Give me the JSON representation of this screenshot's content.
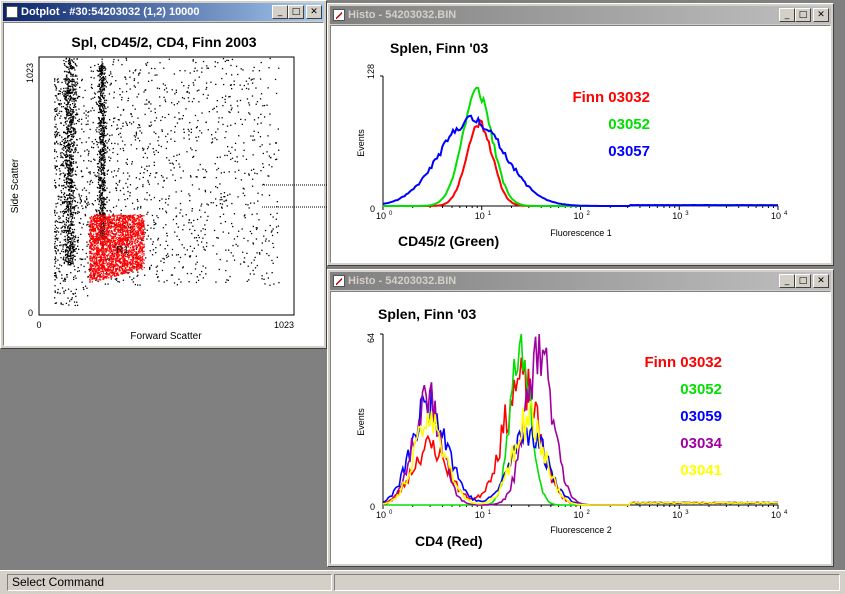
{
  "dotplot_window": {
    "title": "Dotplot - #30:54203032 (1,2) 10000",
    "plot_title": "Spl, CD45/2, CD4, Finn 2003",
    "ylabel": "Side Scatter",
    "xlabel": "Forward Scatter",
    "x_ticks": [
      "0",
      "1023"
    ],
    "y_ticks": [
      "0",
      "1023"
    ],
    "region_label": "R1",
    "colors": {
      "events": "#000000",
      "gated": "#ff0000"
    }
  },
  "histo_top": {
    "title": "Histo - 54203032.BIN",
    "plot_title": "Splen, Finn '03",
    "ylabel": "Events",
    "xlabel": "Fluorescence 1",
    "ymax_label": "128",
    "ymin_label": "0",
    "channel_label": "CD45/2 (Green)",
    "x_tick_labels": [
      {
        "base": "10",
        "exp": "0"
      },
      {
        "base": "10",
        "exp": "1"
      },
      {
        "base": "10",
        "exp": "2"
      },
      {
        "base": "10",
        "exp": "3"
      },
      {
        "base": "10",
        "exp": "4"
      }
    ],
    "legend": [
      {
        "text": "Finn 03032",
        "color": "#ff0000"
      },
      {
        "text": "03052",
        "color": "#00e000"
      },
      {
        "text": "03057",
        "color": "#0000ff"
      }
    ]
  },
  "histo_bottom": {
    "title": "Histo - 54203032.BIN",
    "plot_title": "Splen, Finn '03",
    "ylabel": "Events",
    "xlabel": "Fluorescence 2",
    "ymax_label": "64",
    "ymin_label": "0",
    "channel_label": "CD4 (Red)",
    "x_tick_labels": [
      {
        "base": "10",
        "exp": "0"
      },
      {
        "base": "10",
        "exp": "1"
      },
      {
        "base": "10",
        "exp": "2"
      },
      {
        "base": "10",
        "exp": "3"
      },
      {
        "base": "10",
        "exp": "4"
      }
    ],
    "legend": [
      {
        "text": "Finn 03032",
        "color": "#ff0000"
      },
      {
        "text": "03052",
        "color": "#00e000"
      },
      {
        "text": "03059",
        "color": "#0000ff"
      },
      {
        "text": "03034",
        "color": "#a000a0"
      },
      {
        "text": "03041",
        "color": "#ffff00"
      }
    ]
  },
  "window_buttons": {
    "minimize": "_",
    "maximize": "□",
    "close": "✕"
  },
  "status": {
    "text": "Select Command"
  },
  "chart_data": [
    {
      "type": "scatter",
      "title": "Spl, CD45/2, CD4, Finn 2003",
      "xlabel": "Forward Scatter",
      "ylabel": "Side Scatter",
      "xlim": [
        0,
        1023
      ],
      "ylim": [
        0,
        1023
      ],
      "regions": [
        {
          "name": "R1",
          "color": "#ff0000"
        }
      ],
      "series": [
        {
          "color": "#000000",
          "x_range": [
            30,
            1000
          ],
          "y_range": [
            60,
            1023
          ]
        },
        {
          "name": "R1",
          "color": "#ff0000",
          "x_range": [
            200,
            420
          ],
          "y_range": [
            130,
            400
          ]
        }
      ]
    },
    {
      "type": "line",
      "title": "Splen, Finn '03",
      "xlabel": "Fluorescence 1",
      "ylabel": "Events",
      "x_scale": "log",
      "xlim": [
        1,
        10000
      ],
      "ylim": [
        0,
        128
      ],
      "series": [
        {
          "name": "Finn 03032",
          "color": "#ff0000",
          "peak_x": 9.5,
          "peak_y": 82
        },
        {
          "name": "03052",
          "color": "#00e000",
          "peak_x": 9,
          "peak_y": 113
        },
        {
          "name": "03057",
          "color": "#0000ff",
          "peak_x": 8,
          "peak_y": 85
        }
      ]
    },
    {
      "type": "line",
      "title": "Splen, Finn '03",
      "xlabel": "Fluorescence 2",
      "ylabel": "Events",
      "x_scale": "log",
      "xlim": [
        1,
        10000
      ],
      "ylim": [
        0,
        64
      ],
      "series": [
        {
          "name": "Finn 03032",
          "color": "#ff0000",
          "peaks": [
            {
              "x": 3,
              "y": 22
            },
            {
              "x": 25,
              "y": 46
            }
          ]
        },
        {
          "name": "03052",
          "color": "#00e000",
          "peaks": [
            {
              "x": 25,
              "y": 64
            }
          ]
        },
        {
          "name": "03059",
          "color": "#0000ff",
          "peaks": [
            {
              "x": 3,
              "y": 38
            },
            {
              "x": 30,
              "y": 28
            }
          ]
        },
        {
          "name": "03034",
          "color": "#a000a0",
          "peaks": [
            {
              "x": 2.8,
              "y": 42
            },
            {
              "x": 38,
              "y": 56
            }
          ]
        },
        {
          "name": "03041",
          "color": "#ffff00",
          "peaks": [
            {
              "x": 3,
              "y": 31
            },
            {
              "x": 30,
              "y": 32
            }
          ]
        }
      ]
    }
  ]
}
